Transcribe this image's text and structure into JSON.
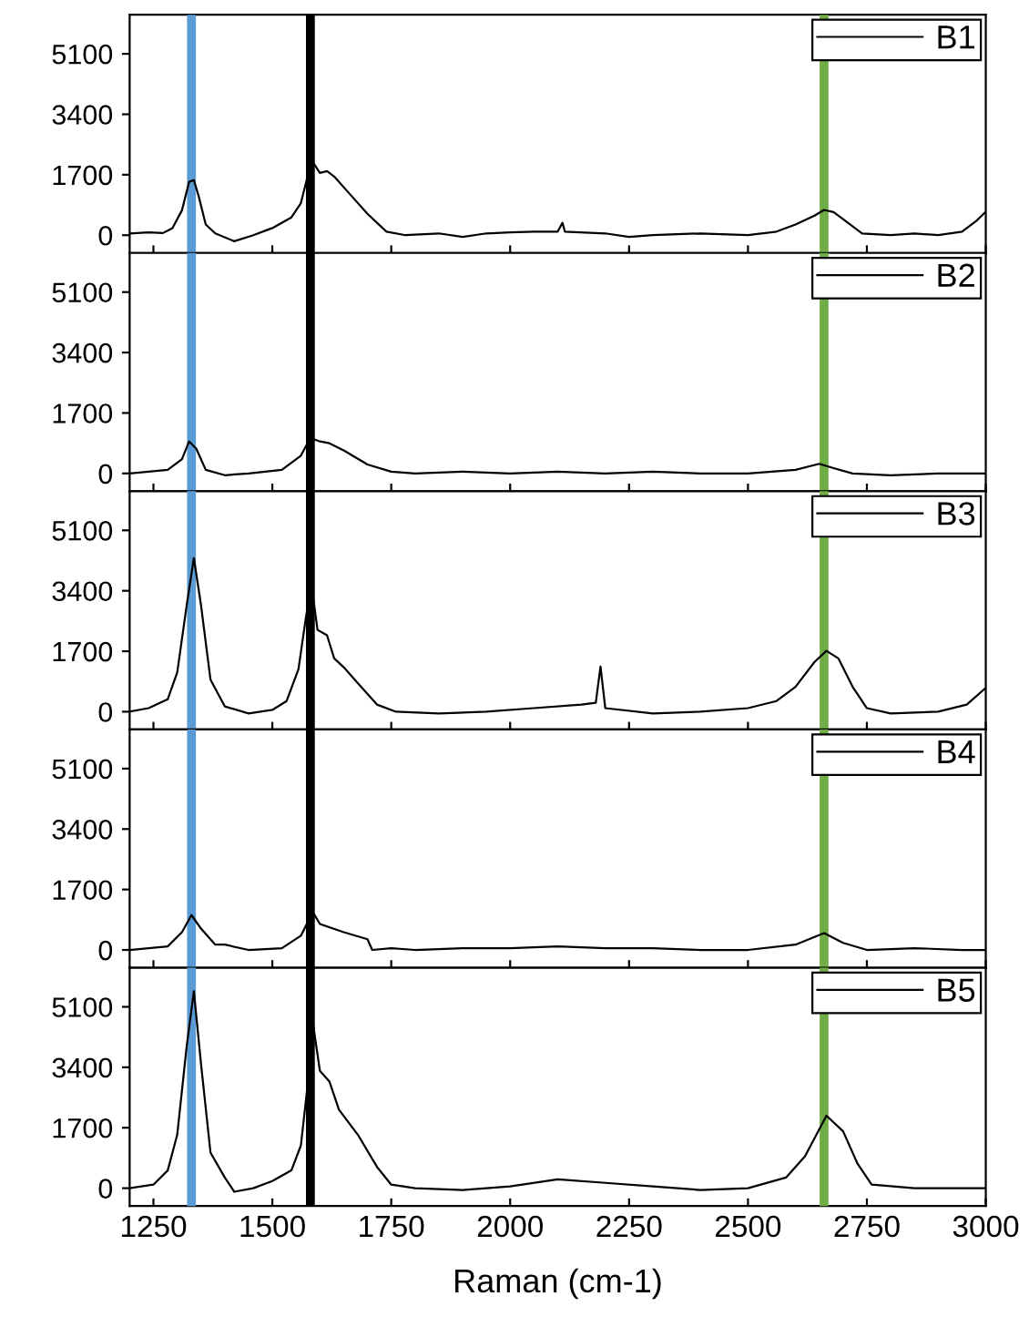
{
  "chart_data": [
    {
      "type": "line",
      "xlim": [
        1200,
        3000
      ],
      "xticks": [
        1250,
        1500,
        1750,
        2000,
        2250,
        2500,
        2750,
        3000
      ],
      "ylim": [
        -500,
        6200
      ],
      "yticks": [
        0,
        1700,
        3400,
        5100
      ],
      "tick_labels": "y",
      "legend": "top right",
      "series": [
        {
          "name": "B1",
          "color": "#000000",
          "x": [
            1200,
            1240,
            1270,
            1290,
            1310,
            1325,
            1335,
            1345,
            1360,
            1380,
            1420,
            1460,
            1500,
            1540,
            1560,
            1575,
            1585,
            1600,
            1615,
            1630,
            1660,
            1700,
            1740,
            1780,
            1850,
            1900,
            1950,
            2000,
            2050,
            2100,
            2110,
            2115,
            2200,
            2250,
            2300,
            2400,
            2500,
            2560,
            2600,
            2640,
            2660,
            2680,
            2700,
            2740,
            2800,
            2850,
            2900,
            2950,
            2980,
            3000
          ],
          "values": [
            50,
            80,
            60,
            200,
            700,
            1500,
            1550,
            1100,
            300,
            50,
            -170,
            0,
            200,
            500,
            900,
            1700,
            2060,
            1750,
            1800,
            1650,
            1200,
            600,
            100,
            0,
            50,
            -50,
            50,
            80,
            100,
            100,
            350,
            100,
            50,
            -50,
            0,
            50,
            0,
            100,
            300,
            550,
            710,
            650,
            450,
            50,
            0,
            50,
            0,
            100,
            400,
            660
          ]
        }
      ],
      "ref_lines": [
        {
          "axis": "x",
          "value": 1330,
          "color": "#5b9bd5"
        },
        {
          "axis": "x",
          "value": 1580,
          "color": "#000000"
        },
        {
          "axis": "x",
          "value": 2660,
          "color": "#70ad47"
        }
      ]
    },
    {
      "type": "line",
      "xlim": [
        1200,
        3000
      ],
      "xticks": [
        1250,
        1500,
        1750,
        2000,
        2250,
        2500,
        2750,
        3000
      ],
      "ylim": [
        -500,
        6200
      ],
      "yticks": [
        0,
        1700,
        3400,
        5100
      ],
      "tick_labels": "y",
      "legend": "top right",
      "series": [
        {
          "name": "B2",
          "color": "#000000",
          "x": [
            1200,
            1280,
            1310,
            1325,
            1340,
            1360,
            1400,
            1450,
            1520,
            1560,
            1580,
            1600,
            1620,
            1650,
            1700,
            1750,
            1800,
            1900,
            2000,
            2100,
            2200,
            2300,
            2400,
            2500,
            2600,
            2650,
            2680,
            2720,
            2800,
            2900,
            3000
          ],
          "values": [
            0,
            100,
            400,
            900,
            700,
            100,
            -50,
            0,
            100,
            500,
            1000,
            900,
            850,
            650,
            250,
            50,
            0,
            50,
            0,
            50,
            0,
            50,
            0,
            0,
            100,
            270,
            150,
            0,
            -50,
            0,
            0
          ]
        }
      ],
      "ref_lines": [
        {
          "axis": "x",
          "value": 1330,
          "color": "#5b9bd5"
        },
        {
          "axis": "x",
          "value": 1580,
          "color": "#000000"
        },
        {
          "axis": "x",
          "value": 2660,
          "color": "#70ad47"
        }
      ]
    },
    {
      "type": "line",
      "xlim": [
        1200,
        3000
      ],
      "xticks": [
        1250,
        1500,
        1750,
        2000,
        2250,
        2500,
        2750,
        3000
      ],
      "ylim": [
        -500,
        6200
      ],
      "yticks": [
        0,
        1700,
        3400,
        5100
      ],
      "tick_labels": "y",
      "legend": "top right",
      "series": [
        {
          "name": "B3",
          "color": "#000000",
          "x": [
            1200,
            1240,
            1280,
            1300,
            1320,
            1335,
            1350,
            1370,
            1400,
            1450,
            1500,
            1530,
            1555,
            1570,
            1582,
            1595,
            1615,
            1630,
            1650,
            1680,
            1720,
            1760,
            1850,
            1950,
            2050,
            2150,
            2180,
            2190,
            2200,
            2300,
            2400,
            2500,
            2560,
            2600,
            2640,
            2665,
            2690,
            2720,
            2750,
            2800,
            2900,
            2960,
            3000
          ],
          "values": [
            0,
            100,
            350,
            1100,
            3000,
            4320,
            3000,
            900,
            150,
            -50,
            50,
            300,
            1200,
            2600,
            3600,
            2300,
            2150,
            1500,
            1250,
            800,
            200,
            0,
            -50,
            0,
            100,
            200,
            250,
            1270,
            100,
            -50,
            0,
            100,
            300,
            700,
            1400,
            1710,
            1500,
            700,
            100,
            -50,
            0,
            200,
            670
          ]
        }
      ],
      "ref_lines": [
        {
          "axis": "x",
          "value": 1330,
          "color": "#5b9bd5"
        },
        {
          "axis": "x",
          "value": 1580,
          "color": "#000000"
        },
        {
          "axis": "x",
          "value": 2660,
          "color": "#70ad47"
        }
      ]
    },
    {
      "type": "line",
      "xlim": [
        1200,
        3000
      ],
      "xticks": [
        1250,
        1500,
        1750,
        2000,
        2250,
        2500,
        2750,
        3000
      ],
      "ylim": [
        -500,
        6200
      ],
      "yticks": [
        0,
        1700,
        3400,
        5100
      ],
      "tick_labels": "y",
      "legend": "top right",
      "series": [
        {
          "name": "B4",
          "color": "#000000",
          "x": [
            1200,
            1280,
            1310,
            1330,
            1350,
            1380,
            1400,
            1450,
            1520,
            1560,
            1585,
            1600,
            1650,
            1700,
            1710,
            1750,
            1800,
            1900,
            2000,
            2100,
            2200,
            2300,
            2400,
            2500,
            2600,
            2660,
            2700,
            2750,
            2850,
            2950,
            3000
          ],
          "values": [
            0,
            100,
            500,
            980,
            600,
            150,
            150,
            0,
            50,
            400,
            1065,
            730,
            500,
            300,
            0,
            50,
            0,
            50,
            50,
            100,
            50,
            50,
            0,
            0,
            150,
            475,
            200,
            0,
            50,
            0,
            0
          ]
        }
      ],
      "ref_lines": [
        {
          "axis": "x",
          "value": 1330,
          "color": "#5b9bd5"
        },
        {
          "axis": "x",
          "value": 1580,
          "color": "#000000"
        },
        {
          "axis": "x",
          "value": 2660,
          "color": "#70ad47"
        }
      ]
    },
    {
      "type": "line",
      "xlim": [
        1200,
        3000
      ],
      "xticks": [
        1250,
        1500,
        1750,
        2000,
        2250,
        2500,
        2750,
        3000
      ],
      "ylim": [
        -500,
        6200
      ],
      "yticks": [
        0,
        1700,
        3400,
        5100
      ],
      "legend": "top right",
      "xlabel": "Raman (cm-1)",
      "series": [
        {
          "name": "B5",
          "color": "#000000",
          "x": [
            1200,
            1250,
            1280,
            1300,
            1320,
            1335,
            1350,
            1370,
            1400,
            1420,
            1460,
            1500,
            1540,
            1560,
            1575,
            1585,
            1600,
            1620,
            1640,
            1680,
            1720,
            1750,
            1800,
            1900,
            2000,
            2100,
            2200,
            2300,
            2400,
            2500,
            2580,
            2620,
            2665,
            2700,
            2730,
            2760,
            2850,
            3000
          ],
          "values": [
            0,
            100,
            500,
            1500,
            4000,
            5540,
            3500,
            1000,
            300,
            -100,
            0,
            200,
            500,
            1200,
            3000,
            4670,
            3300,
            3000,
            2210,
            1500,
            600,
            100,
            0,
            -50,
            50,
            250,
            150,
            50,
            -50,
            0,
            300,
            900,
            2040,
            1600,
            700,
            100,
            0,
            0
          ]
        }
      ],
      "ref_lines": [
        {
          "axis": "x",
          "value": 1330,
          "color": "#5b9bd5"
        },
        {
          "axis": "x",
          "value": 1580,
          "color": "#000000"
        },
        {
          "axis": "x",
          "value": 2660,
          "color": "#70ad47"
        }
      ]
    }
  ]
}
